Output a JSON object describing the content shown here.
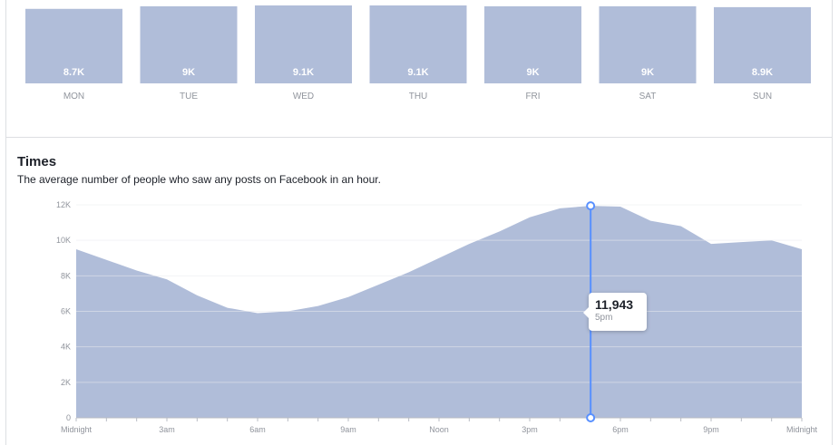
{
  "chart_data": [
    {
      "type": "bar",
      "categories": [
        "MON",
        "TUE",
        "WED",
        "THU",
        "FRI",
        "SAT",
        "SUN"
      ],
      "values": [
        8700,
        9000,
        9100,
        9100,
        9000,
        9000,
        8900
      ],
      "value_labels": [
        "8.7K",
        "9K",
        "9.1K",
        "9.1K",
        "9K",
        "9K",
        "8.9K"
      ],
      "ylim": [
        0,
        9100
      ],
      "bar_color": "#b0bdd9"
    },
    {
      "type": "area",
      "title": "Times",
      "subtitle": "The average number of people who saw any posts on Facebook in an hour.",
      "x": [
        "12am",
        "1am",
        "2am",
        "3am",
        "4am",
        "5am",
        "6am",
        "7am",
        "8am",
        "9am",
        "10am",
        "11am",
        "12pm",
        "1pm",
        "2pm",
        "3pm",
        "4pm",
        "5pm",
        "6pm",
        "7pm",
        "8pm",
        "9pm",
        "10pm",
        "11pm",
        "12am"
      ],
      "values": [
        9500,
        8900,
        8300,
        7800,
        6900,
        6200,
        5900,
        6000,
        6300,
        6800,
        7500,
        8200,
        9000,
        9800,
        10500,
        11300,
        11800,
        11943,
        11900,
        11100,
        10800,
        9800,
        9900,
        10000,
        9500
      ],
      "x_tick_labels": [
        "Midnight",
        "3am",
        "6am",
        "9am",
        "Noon",
        "3pm",
        "6pm",
        "9pm",
        "Midnight"
      ],
      "x_tick_indices": [
        0,
        3,
        6,
        9,
        12,
        15,
        18,
        21,
        24
      ],
      "y_ticks": [
        0,
        2000,
        4000,
        6000,
        8000,
        10000,
        12000
      ],
      "y_tick_labels": [
        "0",
        "2K",
        "4K",
        "6K",
        "8K",
        "10K",
        "12K"
      ],
      "ylim": [
        0,
        12000
      ],
      "grid": true,
      "area_color": "#b0bdd9",
      "highlight_color": "#5890ff",
      "tooltip": {
        "value": "11,943",
        "time": "5pm",
        "index": 17
      }
    }
  ]
}
